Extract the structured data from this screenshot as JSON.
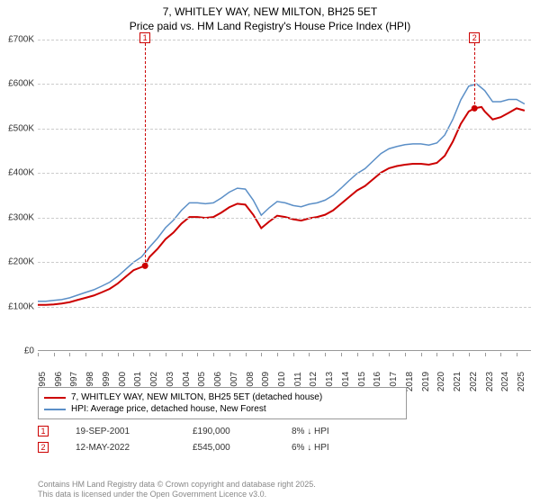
{
  "title": {
    "line1": "7, WHITLEY WAY, NEW MILTON, BH25 5ET",
    "line2": "Price paid vs. HM Land Registry's House Price Index (HPI)",
    "fontsize": 12
  },
  "chart": {
    "type": "line",
    "background_color": "#ffffff",
    "grid_color": "#cccccc",
    "axis_color": "#999999",
    "ylim": [
      0,
      700000
    ],
    "ytick_step": 100000,
    "yticks": [
      "£0",
      "£100K",
      "£200K",
      "£300K",
      "£400K",
      "£500K",
      "£600K",
      "£700K"
    ],
    "xlim": [
      1995,
      2025.9
    ],
    "xticks": [
      1995,
      1996,
      1997,
      1998,
      1999,
      2000,
      2001,
      2002,
      2003,
      2004,
      2005,
      2006,
      2007,
      2008,
      2009,
      2010,
      2011,
      2012,
      2013,
      2014,
      2015,
      2016,
      2017,
      2018,
      2019,
      2020,
      2021,
      2022,
      2023,
      2024,
      2025
    ],
    "label_fontsize": 10,
    "series": [
      {
        "name": "7, WHITLEY WAY, NEW MILTON, BH25 5ET (detached house)",
        "color": "#cc0000",
        "line_width": 2,
        "x": [
          1995,
          1995.5,
          1996,
          1996.5,
          1997,
          1997.5,
          1998,
          1998.5,
          1999,
          1999.5,
          2000,
          2000.5,
          2001,
          2001.7,
          2002,
          2002.5,
          2003,
          2003.5,
          2004,
          2004.5,
          2005,
          2005.5,
          2006,
          2006.5,
          2007,
          2007.5,
          2008,
          2008.5,
          2009,
          2009.5,
          2010,
          2010.5,
          2011,
          2011.5,
          2012,
          2012.5,
          2013,
          2013.5,
          2014,
          2014.5,
          2015,
          2015.5,
          2016,
          2016.5,
          2017,
          2017.5,
          2018,
          2018.5,
          2019,
          2019.5,
          2020,
          2020.5,
          2021,
          2021.5,
          2022,
          2022.36,
          2022.8,
          2023,
          2023.5,
          2024,
          2024.5,
          2025,
          2025.5
        ],
        "y": [
          102000,
          102000,
          103000,
          105000,
          108000,
          113000,
          118000,
          123000,
          130000,
          138000,
          150000,
          165000,
          180000,
          190000,
          210000,
          228000,
          250000,
          265000,
          285000,
          300000,
          300000,
          298000,
          300000,
          310000,
          322000,
          330000,
          328000,
          305000,
          275000,
          290000,
          303000,
          300000,
          295000,
          292000,
          297000,
          300000,
          305000,
          315000,
          330000,
          345000,
          360000,
          370000,
          385000,
          400000,
          410000,
          415000,
          418000,
          420000,
          420000,
          418000,
          422000,
          438000,
          470000,
          510000,
          538000,
          545000,
          548000,
          538000,
          520000,
          525000,
          535000,
          545000,
          540000
        ]
      },
      {
        "name": "HPI: Average price, detached house, New Forest",
        "color": "#5b8fc7",
        "line_width": 1.5,
        "x": [
          1995,
          1995.5,
          1996,
          1996.5,
          1997,
          1997.5,
          1998,
          1998.5,
          1999,
          1999.5,
          2000,
          2000.5,
          2001,
          2001.5,
          2002,
          2002.5,
          2003,
          2003.5,
          2004,
          2004.5,
          2005,
          2005.5,
          2006,
          2006.5,
          2007,
          2007.5,
          2008,
          2008.5,
          2009,
          2009.5,
          2010,
          2010.5,
          2011,
          2011.5,
          2012,
          2012.5,
          2013,
          2013.5,
          2014,
          2014.5,
          2015,
          2015.5,
          2016,
          2016.5,
          2017,
          2017.5,
          2018,
          2018.5,
          2019,
          2019.5,
          2020,
          2020.5,
          2021,
          2021.5,
          2022,
          2022.5,
          2023,
          2023.5,
          2024,
          2024.5,
          2025,
          2025.5
        ],
        "y": [
          110000,
          110000,
          112000,
          114000,
          118000,
          124000,
          130000,
          136000,
          144000,
          153000,
          166000,
          182000,
          198000,
          210000,
          232000,
          252000,
          276000,
          293000,
          315000,
          332000,
          332000,
          330000,
          332000,
          343000,
          356000,
          365000,
          363000,
          338000,
          304000,
          321000,
          335000,
          332000,
          326000,
          323000,
          329000,
          332000,
          338000,
          349000,
          365000,
          382000,
          398000,
          409000,
          426000,
          443000,
          454000,
          459000,
          463000,
          465000,
          465000,
          462000,
          467000,
          485000,
          520000,
          564000,
          595000,
          600000,
          585000,
          560000,
          560000,
          565000,
          565000,
          555000
        ]
      }
    ],
    "sale_markers": [
      {
        "id": "1",
        "x": 2001.72,
        "y": 190000,
        "date": "19-SEP-2001",
        "price": "£190,000",
        "delta": "8% ↓ HPI"
      },
      {
        "id": "2",
        "x": 2022.36,
        "y": 545000,
        "date": "12-MAY-2022",
        "price": "£545,000",
        "delta": "6% ↓ HPI"
      }
    ],
    "marker_dot_color": "#cc0000",
    "marker_box_border": "#cc0000"
  },
  "legend": {
    "border_color": "#999999",
    "fontsize": 10
  },
  "footer": {
    "line1": "Contains HM Land Registry data © Crown copyright and database right 2025.",
    "line2": "This data is licensed under the Open Government Licence v3.0.",
    "color": "#888888",
    "fontsize": 9
  }
}
